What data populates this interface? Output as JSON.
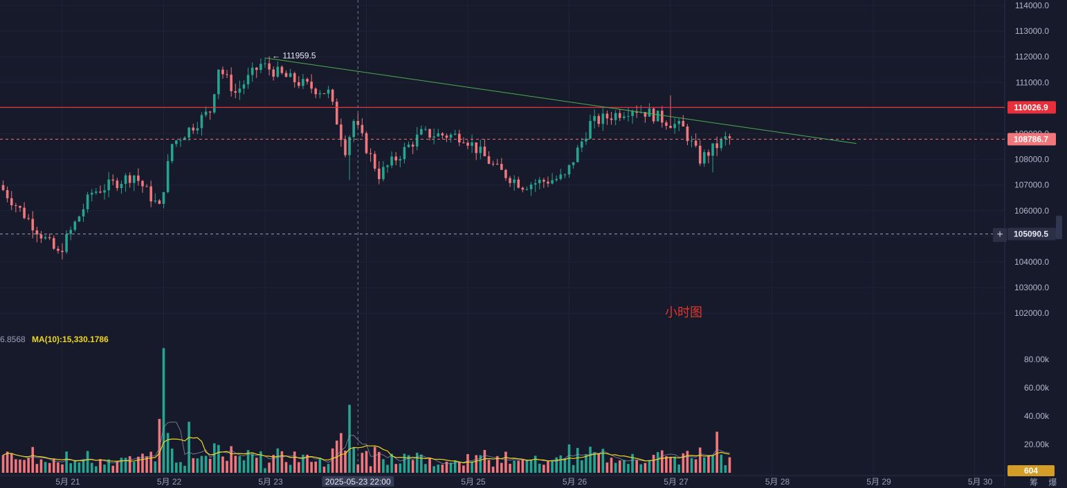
{
  "colors": {
    "background": "#161a2b",
    "up": "#25a58f",
    "down": "#f2777d",
    "resistance_line": "#e8303c",
    "current_line": "#f2777d",
    "support_line": "#9aa0b6",
    "trend_line": "#4caf50",
    "ma5": "#9aa0b6",
    "ma10": "#f2d61f",
    "volume_badge": "#d49d28"
  },
  "price_axis": [
    "114000.0",
    "113000.0",
    "112000.0",
    "111000.0",
    "110000.0",
    "109000.0",
    "108000.0",
    "107000.0",
    "106000.0",
    "105000.0",
    "104000.0",
    "103000.0",
    "102000.0"
  ],
  "volume_axis": [
    "80.00k",
    "60.00k",
    "40.00k",
    "20.00k"
  ],
  "time_axis": [
    "5月 21",
    "5月 22",
    "5月 23",
    "5月 24",
    "5月 25",
    "5月 26",
    "5月 27",
    "5月 28",
    "5月 29",
    "5月 30"
  ],
  "crosshair_time_label": "2025-05-23 22:00",
  "price_badges": {
    "resistance": "110026.9",
    "current": "108786.7",
    "support": "105090.5",
    "volume": "604"
  },
  "high_marker": "111959.5",
  "ma_readout": {
    "ma5_value_fragment": "6.8568",
    "ma10": "MA(10):15,330.1786"
  },
  "annotation": "小时图",
  "corner_labels": [
    "筹",
    "爆"
  ],
  "chart_data": {
    "type": "candlestick",
    "title": "",
    "timeframe_note": "小时图",
    "price_ylim": [
      101500,
      114200
    ],
    "volume_ylim": [
      0,
      92000
    ],
    "x_ticks": [
      "5月 21",
      "5月 22",
      "5月 23",
      "5月 24",
      "5月 25",
      "5月 26",
      "5月 27",
      "5月 28",
      "5月 29",
      "5月 30"
    ],
    "horizontal_lines": [
      {
        "label": "110026.9",
        "value": 110026.9,
        "style": "solid"
      },
      {
        "label": "108786.7",
        "value": 108786.7,
        "style": "dashed"
      },
      {
        "label": "105090.5",
        "value": 105090.5,
        "style": "dashed"
      }
    ],
    "trend_line": {
      "from": {
        "time": "5月 23 00:00",
        "value": 111959.5
      },
      "to": {
        "time": "5月 28 20:00",
        "value": 108620
      }
    },
    "high_marker": {
      "time": "5月 23 00:00",
      "value": 111959.5
    },
    "series": [
      {
        "name": "price",
        "kind": "candlestick"
      },
      {
        "name": "volume",
        "kind": "bar"
      },
      {
        "name": "MA(10)",
        "kind": "line"
      }
    ],
    "anchors": [
      {
        "t": "5月 20 10:00",
        "price": 107000
      },
      {
        "t": "5月 21 00:00",
        "price": 104300
      },
      {
        "t": "5月 21 08:00",
        "price": 106700
      },
      {
        "t": "5月 21 18:00",
        "price": 107400
      },
      {
        "t": "5月 22 00:00",
        "price": 106100
      },
      {
        "t": "5月 22 03:00",
        "price": 108600
      },
      {
        "t": "5月 22 12:00",
        "price": 109900
      },
      {
        "t": "5月 22 14:00",
        "price": 111600
      },
      {
        "t": "5月 22 18:00",
        "price": 110600
      },
      {
        "t": "5月 23 00:00",
        "price": 111700
      },
      {
        "t": "5月 23 06:00",
        "price": 111200
      },
      {
        "t": "5月 23 12:00",
        "price": 110800
      },
      {
        "t": "5月 23 16:00",
        "price": 110600
      },
      {
        "t": "5月 23 20:00",
        "price": 108400
      },
      {
        "t": "5月 23 22:00",
        "price": 109500
      },
      {
        "t": "5月 24 04:00",
        "price": 107400
      },
      {
        "t": "5月 24 09:00",
        "price": 108200
      },
      {
        "t": "5月 24 14:00",
        "price": 109000
      },
      {
        "t": "5月 25 00:00",
        "price": 108900
      },
      {
        "t": "5月 25 08:00",
        "price": 107600
      },
      {
        "t": "5月 25 14:00",
        "price": 107000
      },
      {
        "t": "5月 26 00:00",
        "price": 107300
      },
      {
        "t": "5月 26 06:00",
        "price": 109400
      },
      {
        "t": "5月 26 16:00",
        "price": 110000
      },
      {
        "t": "5月 26 20:00",
        "price": 109800
      },
      {
        "t": "5月 27 04:00",
        "price": 109200
      },
      {
        "t": "5月 27 08:00",
        "price": 108000
      },
      {
        "t": "5月 27 14:00",
        "price": 108800
      }
    ],
    "volume_spikes": [
      {
        "t": "5月 22 00:00",
        "value": 88000
      },
      {
        "t": "5月 21 23:00",
        "value": 38000
      },
      {
        "t": "5月 22 06:00",
        "value": 36000
      },
      {
        "t": "5月 23 20:00",
        "value": 48000
      },
      {
        "t": "5月 23 18:00",
        "value": 28000
      },
      {
        "t": "5月 27 11:00",
        "value": 29000
      },
      {
        "t": "5月 26 00:00",
        "value": 20000
      }
    ]
  }
}
